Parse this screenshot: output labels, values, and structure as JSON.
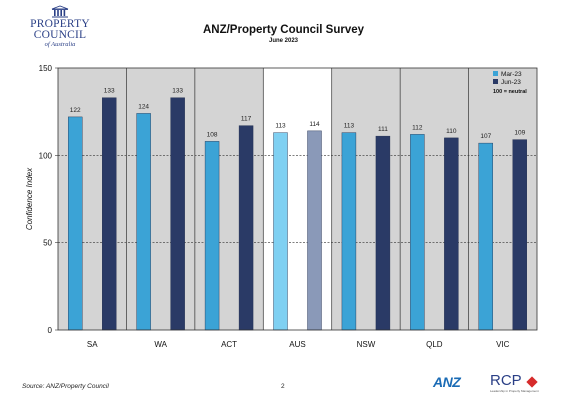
{
  "header": {
    "title": "ANZ/Property Council Survey",
    "subtitle": "June 2023"
  },
  "logo": {
    "line1": "PROPERTY",
    "line2": "COUNCIL",
    "line3": "of Australia",
    "color": "#2a3f86"
  },
  "footer": {
    "source": "Source: ANZ/Property Council",
    "page": "2",
    "anz_logo": "ANZ",
    "rcp_logo": "RCP",
    "rcp_tagline": "Leadership in Property Management"
  },
  "chart_data": {
    "type": "bar",
    "categories": [
      "SA",
      "WA",
      "ACT",
      "AUS",
      "NSW",
      "QLD",
      "VIC"
    ],
    "series": [
      {
        "name": "Mar-23",
        "values": [
          122,
          124,
          108,
          113,
          113,
          112,
          107
        ],
        "color": "#3ba3d6"
      },
      {
        "name": "Jun-23",
        "values": [
          133,
          133,
          117,
          114,
          111,
          110,
          109
        ],
        "color": "#2a3a66"
      }
    ],
    "highlight_category": "AUS",
    "highlight_colors": {
      "Mar-23": "#7fd0f2",
      "Jun-23": "#8a99b8"
    },
    "ylabel": "Confidence Index",
    "ylim": [
      0,
      150
    ],
    "yticks": [
      0,
      50,
      100,
      150
    ],
    "reference_lines": [
      50,
      100
    ],
    "legend_note": "100 = neutral",
    "legend_position": "top-right",
    "panel_background": "#d4d4d4",
    "highlight_background": "#ffffff"
  }
}
